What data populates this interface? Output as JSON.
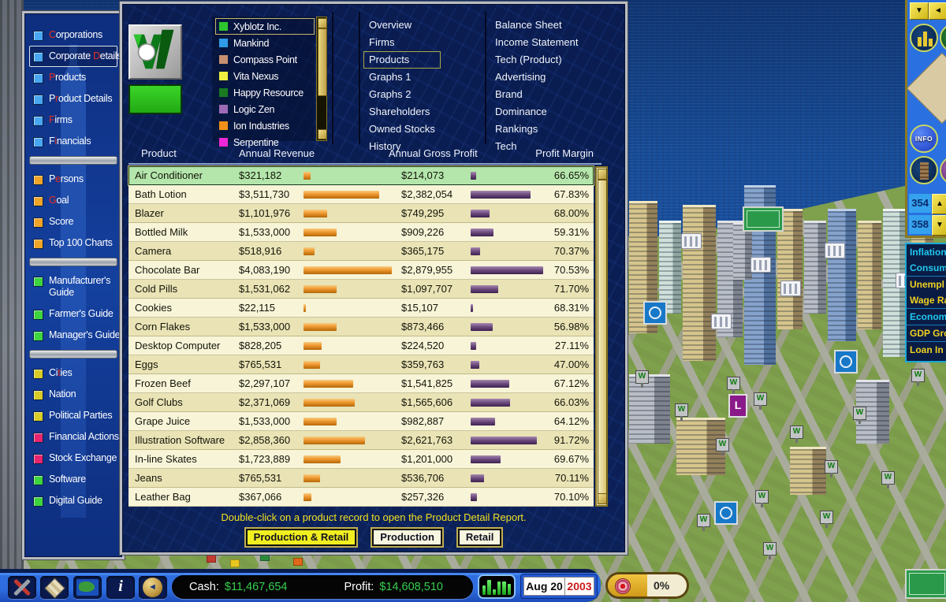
{
  "sidebar": {
    "items": [
      {
        "label": "Corporations",
        "hot": 0,
        "color": "#49a6f0"
      },
      {
        "label": "Corporate Details",
        "hot": 10,
        "color": "#49a6f0",
        "selected": true
      },
      {
        "label": "Products",
        "hot": 0,
        "color": "#49a6f0"
      },
      {
        "label": "Product Details",
        "hot": 1,
        "color": "#49a6f0"
      },
      {
        "label": "Firms",
        "hot": 0,
        "color": "#49a6f0"
      },
      {
        "label": "Financials",
        "hot": 1,
        "color": "#49a6f0"
      },
      {
        "divider": true
      },
      {
        "label": "Persons",
        "hot": 1,
        "color": "#f0a428"
      },
      {
        "label": "Goal",
        "hot": 0,
        "color": "#f0a428"
      },
      {
        "label": "Score",
        "hot": -1,
        "color": "#f0a428"
      },
      {
        "label": "Top 100 Charts",
        "hot": -1,
        "color": "#f0a428"
      },
      {
        "divider": true
      },
      {
        "label": "Manufacturer's Guide",
        "hot": -1,
        "color": "#3ed43e",
        "wrap": true
      },
      {
        "label": "Farmer's Guide",
        "hot": -1,
        "color": "#3ed43e"
      },
      {
        "label": "Manager's Guide",
        "hot": -1,
        "color": "#3ed43e"
      },
      {
        "divider": true
      },
      {
        "label": "Cities",
        "hot": 2,
        "color": "#d8cc28"
      },
      {
        "label": "Nation",
        "hot": -1,
        "color": "#d8cc28"
      },
      {
        "label": "Political Parties",
        "hot": -1,
        "color": "#d8cc28"
      },
      {
        "label": "Financial Actions",
        "hot": -1,
        "color": "#e8246e"
      },
      {
        "label": "Stock Exchange",
        "hot": -1,
        "color": "#e8246e"
      },
      {
        "label": "Software",
        "hot": -1,
        "color": "#3ed43e"
      },
      {
        "label": "Digital Guide",
        "hot": -1,
        "color": "#3ed43e"
      }
    ]
  },
  "companies": {
    "selected": "Xyblotz Inc.",
    "items": [
      {
        "name": "Xyblotz Inc.",
        "color": "#2ec52e"
      },
      {
        "name": "Mankind",
        "color": "#2e9ae8"
      },
      {
        "name": "Compass Point",
        "color": "#c89070"
      },
      {
        "name": "Vita Nexus",
        "color": "#f0ee40"
      },
      {
        "name": "Happy Resource",
        "color": "#1a7a22"
      },
      {
        "name": "Logic Zen",
        "color": "#9e6ab8"
      },
      {
        "name": "Ion Industries",
        "color": "#f09018"
      },
      {
        "name": "Serpentine",
        "color": "#ee28d8"
      }
    ]
  },
  "menu": {
    "selected": "Products",
    "column1": [
      "Overview",
      "Firms",
      "Products",
      "Graphs 1",
      "Graphs 2",
      "Shareholders",
      "Owned Stocks",
      "History"
    ],
    "column2": [
      "Balance Sheet",
      "Income Statement",
      "Tech (Product)",
      "Advertising",
      "Brand",
      "Dominance",
      "Rankings",
      "Tech"
    ]
  },
  "table": {
    "headers": [
      "Product",
      "Annual Revenue",
      "Annual Gross Profit",
      "Profit Margin"
    ],
    "selected_index": 0,
    "rows": [
      {
        "product": "Air Conditioner",
        "revenue": "$321,182",
        "gross_profit": "$214,073",
        "margin": "66.65%"
      },
      {
        "product": "Bath Lotion",
        "revenue": "$3,511,730",
        "gross_profit": "$2,382,054",
        "margin": "67.83%"
      },
      {
        "product": "Blazer",
        "revenue": "$1,101,976",
        "gross_profit": "$749,295",
        "margin": "68.00%"
      },
      {
        "product": "Bottled Milk",
        "revenue": "$1,533,000",
        "gross_profit": "$909,226",
        "margin": "59.31%"
      },
      {
        "product": "Camera",
        "revenue": "$518,916",
        "gross_profit": "$365,175",
        "margin": "70.37%"
      },
      {
        "product": "Chocolate Bar",
        "revenue": "$4,083,190",
        "gross_profit": "$2,879,955",
        "margin": "70.53%"
      },
      {
        "product": "Cold Pills",
        "revenue": "$1,531,062",
        "gross_profit": "$1,097,707",
        "margin": "71.70%"
      },
      {
        "product": "Cookies",
        "revenue": "$22,115",
        "gross_profit": "$15,107",
        "margin": "68.31%"
      },
      {
        "product": "Corn Flakes",
        "revenue": "$1,533,000",
        "gross_profit": "$873,466",
        "margin": "56.98%"
      },
      {
        "product": "Desktop Computer",
        "revenue": "$828,205",
        "gross_profit": "$224,520",
        "margin": "27.11%"
      },
      {
        "product": "Eggs",
        "revenue": "$765,531",
        "gross_profit": "$359,763",
        "margin": "47.00%"
      },
      {
        "product": "Frozen Beef",
        "revenue": "$2,297,107",
        "gross_profit": "$1,541,825",
        "margin": "67.12%"
      },
      {
        "product": "Golf Clubs",
        "revenue": "$2,371,069",
        "gross_profit": "$1,565,606",
        "margin": "66.03%"
      },
      {
        "product": "Grape Juice",
        "revenue": "$1,533,000",
        "gross_profit": "$982,887",
        "margin": "64.12%"
      },
      {
        "product": "Illustration Software",
        "revenue": "$2,858,360",
        "gross_profit": "$2,621,763",
        "margin": "91.72%"
      },
      {
        "product": "In-line Skates",
        "revenue": "$1,723,889",
        "gross_profit": "$1,201,000",
        "margin": "69.67%"
      },
      {
        "product": "Jeans",
        "revenue": "$765,531",
        "gross_profit": "$536,706",
        "margin": "70.11%"
      },
      {
        "product": "Leather Bag",
        "revenue": "$367,066",
        "gross_profit": "$257,326",
        "margin": "70.10%"
      }
    ]
  },
  "footer": {
    "hint": "Double-click on a product record to open the Product Detail Report.",
    "buttons": [
      "Production & Retail",
      "Production",
      "Retail"
    ],
    "selected_button": "Production & Retail"
  },
  "status_bar": {
    "icons": [
      "tools-icon",
      "zones-icon",
      "map-icon",
      "info-icon",
      "back-icon"
    ],
    "cash_label": "Cash:",
    "cash_value": "$11,467,654",
    "profit_label": "Profit:",
    "profit_value": "$14,608,510",
    "date_day": "Aug 20",
    "date_year": "2003",
    "goal_percent": "0%"
  },
  "right_panel": {
    "collapse_button": "▼",
    "side_button": "◄",
    "info_button": "INFO",
    "spinner_up_value": "354",
    "spinner_down_value": "358",
    "spinner_up_glyph": "▲",
    "spinner_down_glyph": "▼",
    "indicators": [
      {
        "label": "Inflation",
        "color": "cyan"
      },
      {
        "label": "Consum",
        "color": "cyan",
        "sep": true
      },
      {
        "label": "Unempl",
        "color": "yellow"
      },
      {
        "label": "Wage Ra",
        "color": "yellow",
        "sep": true
      },
      {
        "label": "Econom",
        "color": "cyan",
        "sep": true
      },
      {
        "label": "GDP Gro",
        "color": "yellow",
        "sep": true
      },
      {
        "label": "Loan In",
        "color": "yellow"
      }
    ]
  },
  "colors": {
    "revenue_bar": "#ef9830",
    "gross_profit_bar": "#6f4f80",
    "selected_row": "#b4e6ac",
    "cash_green": "#35d04f",
    "year_red": "#cc1818"
  }
}
